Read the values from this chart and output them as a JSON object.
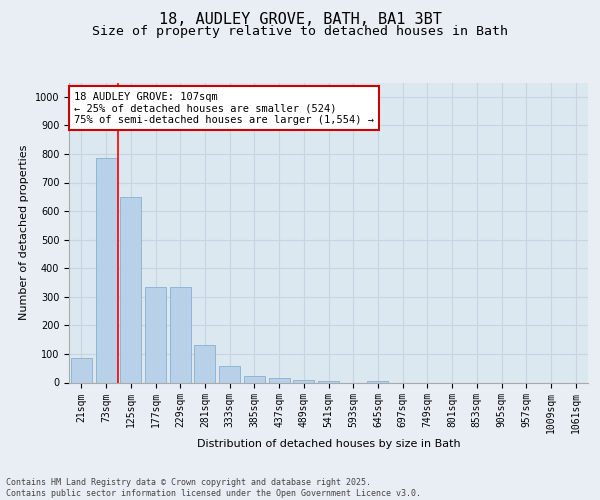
{
  "title_line1": "18, AUDLEY GROVE, BATH, BA1 3BT",
  "title_line2": "Size of property relative to detached houses in Bath",
  "xlabel": "Distribution of detached houses by size in Bath",
  "ylabel": "Number of detached properties",
  "categories": [
    "21sqm",
    "73sqm",
    "125sqm",
    "177sqm",
    "229sqm",
    "281sqm",
    "333sqm",
    "385sqm",
    "437sqm",
    "489sqm",
    "541sqm",
    "593sqm",
    "645sqm",
    "697sqm",
    "749sqm",
    "801sqm",
    "853sqm",
    "905sqm",
    "957sqm",
    "1009sqm",
    "1061sqm"
  ],
  "values": [
    85,
    785,
    648,
    335,
    335,
    133,
    58,
    22,
    17,
    9,
    5,
    0,
    6,
    0,
    0,
    0,
    0,
    0,
    0,
    0,
    0
  ],
  "bar_color": "#b8d0e8",
  "bar_edge_color": "#7aa8cc",
  "grid_color": "#c8d4e0",
  "bg_color": "#dce8f0",
  "fig_bg_color": "#e8eef4",
  "annotation_text": "18 AUDLEY GROVE: 107sqm\n← 25% of detached houses are smaller (524)\n75% of semi-detached houses are larger (1,554) →",
  "annotation_box_color": "#cc0000",
  "property_line_x": 1.5,
  "ylim": [
    0,
    1050
  ],
  "yticks": [
    0,
    100,
    200,
    300,
    400,
    500,
    600,
    700,
    800,
    900,
    1000
  ],
  "footer_text": "Contains HM Land Registry data © Crown copyright and database right 2025.\nContains public sector information licensed under the Open Government Licence v3.0.",
  "title_fontsize": 11,
  "subtitle_fontsize": 9.5,
  "label_fontsize": 8,
  "tick_fontsize": 7,
  "annotation_fontsize": 7.5,
  "footer_fontsize": 6
}
